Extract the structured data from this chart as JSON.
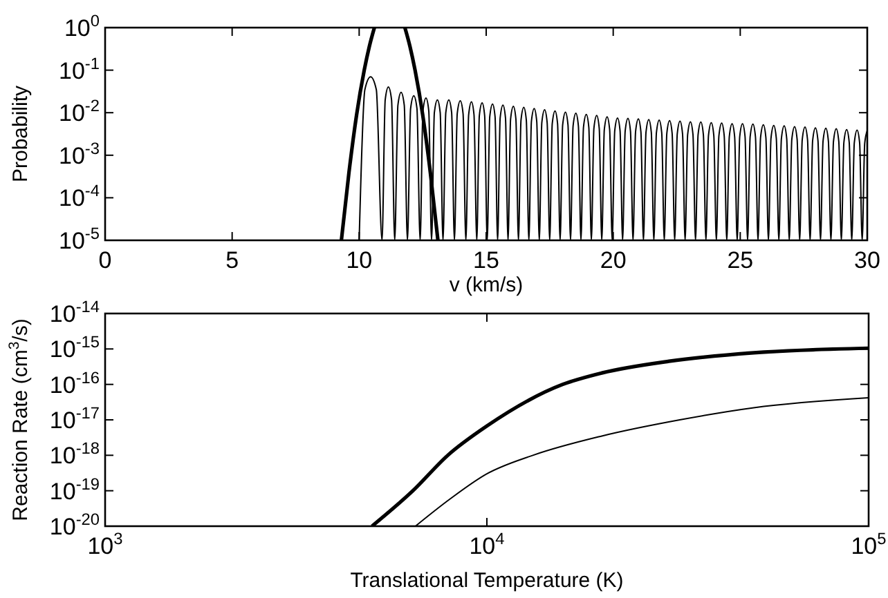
{
  "chart_data": [
    {
      "type": "line",
      "xlabel": "v (km/s)",
      "ylabel": "Probability",
      "log": "y",
      "grid": false,
      "xlim": [
        0,
        30
      ],
      "xticks": [
        0,
        5,
        10,
        15,
        20,
        25,
        30
      ],
      "ylim": [
        1e-05,
        1
      ],
      "yticks": [
        {
          "value": 1e-05,
          "label": "10$^{-5}$"
        },
        {
          "value": 0.0001,
          "label": "10$^{-4}$"
        },
        {
          "value": 0.001,
          "label": "10$^{-3}$"
        },
        {
          "value": 0.01,
          "label": "10$^{-2}$"
        },
        {
          "value": 0.1,
          "label": "10$^{-1}$"
        },
        {
          "value": 1,
          "label": "10$^{0}$"
        }
      ],
      "series": [
        {
          "color": "#000000",
          "x": [
            9.3,
            9.6,
            9.9,
            10.2,
            10.4,
            10.6,
            11.2,
            11.8,
            12.0,
            12.2,
            12.5,
            12.8,
            13.1
          ],
          "values": [
            1e-05,
            0.0004,
            0.009,
            0.1,
            0.36,
            1,
            null,
            1,
            0.36,
            0.1,
            0.009,
            0.0004,
            1e-05
          ]
        },
        {
          "color": "#000000",
          "x": [
            10.0,
            10.225,
            10.45,
            10.675,
            10.9,
            11.025,
            11.15,
            11.275,
            11.4,
            11.525,
            11.65,
            11.775,
            11.9,
            12.025,
            12.15,
            12.275,
            12.4,
            12.51,
            12.63,
            12.74,
            12.85,
            12.96,
            13.08,
            13.19,
            13.3,
            13.41,
            13.53,
            13.64,
            13.75,
            13.86,
            13.98,
            14.09,
            14.2,
            14.31,
            14.42,
            14.52,
            14.63,
            14.73,
            14.84,
            14.94,
            15.04,
            15.14,
            15.25,
            15.35,
            15.45,
            15.55,
            15.66,
            15.76,
            15.86,
            15.96,
            16.07,
            16.17,
            16.27,
            16.37,
            16.48,
            16.58,
            16.68,
            16.78,
            16.89,
            16.99,
            17.09,
            17.19,
            17.3,
            17.4,
            17.5,
            17.6,
            17.71,
            17.81,
            17.91,
            18.01,
            18.12,
            18.22,
            18.32,
            18.42,
            18.53,
            18.63,
            18.73,
            18.83,
            18.94,
            19.04,
            19.14,
            19.24,
            19.35,
            19.45,
            19.55,
            19.65,
            19.76,
            19.86,
            19.96,
            20.06,
            20.17,
            20.27,
            20.37,
            20.47,
            20.58,
            20.68,
            20.78,
            20.88,
            20.99,
            21.09,
            21.19,
            21.29,
            21.4,
            21.5,
            21.6,
            21.7,
            21.81,
            21.91,
            22.01,
            22.11,
            22.22,
            22.32,
            22.42,
            22.52,
            22.63,
            22.73,
            22.83,
            22.93,
            23.04,
            23.14,
            23.24,
            23.34,
            23.45,
            23.55,
            23.65,
            23.75,
            23.86,
            23.96,
            24.06,
            24.16,
            24.27,
            24.37,
            24.47,
            24.57,
            24.68,
            24.78,
            24.88,
            24.98,
            25.09,
            25.19,
            25.29,
            25.39,
            25.5,
            25.6,
            25.7,
            25.8,
            25.91,
            26.01,
            26.11,
            26.21,
            26.32,
            26.42,
            26.52,
            26.62,
            26.73,
            26.83,
            26.93,
            27.03,
            27.14,
            27.24,
            27.34,
            27.44,
            27.55,
            27.65,
            27.75,
            27.85,
            27.96,
            28.06,
            28.16,
            28.26,
            28.37,
            28.47,
            28.57,
            28.67,
            28.78,
            28.88,
            28.98,
            29.08,
            29.19,
            29.29,
            29.39,
            29.49,
            29.6,
            29.7,
            29.8,
            29.9,
            30
          ],
          "values": [
            1e-05,
            0.035,
            0.07,
            0.035,
            1e-05,
            0.02,
            0.04,
            0.02,
            1e-05,
            0.015,
            0.03,
            0.015,
            1e-05,
            0.0125,
            0.025,
            0.0125,
            1e-05,
            0.011,
            0.022,
            0.011,
            1e-05,
            0.01,
            0.02,
            0.01,
            1e-05,
            0.01,
            0.02,
            0.01,
            1e-05,
            0.0095,
            0.019,
            0.0095,
            1e-05,
            0.009,
            0.018,
            0.009,
            1e-05,
            0.0085,
            0.017,
            0.0085,
            1e-05,
            0.008,
            0.016,
            0.008,
            1e-05,
            0.0075,
            0.015,
            0.0075,
            1e-05,
            0.00705,
            0.0141,
            0.00705,
            1e-05,
            0.00665,
            0.0133,
            0.00665,
            1e-05,
            0.00625,
            0.0125,
            0.00625,
            1e-05,
            0.00585,
            0.0117,
            0.00585,
            1e-05,
            0.0055,
            0.011,
            0.0055,
            1e-05,
            0.00515,
            0.0103,
            0.00515,
            1e-05,
            0.00485,
            0.0097,
            0.00485,
            1e-05,
            0.00455,
            0.0091,
            0.00455,
            1e-05,
            0.0043,
            0.0086,
            0.0043,
            1e-05,
            0.004,
            0.008,
            0.004,
            1e-05,
            0.00375,
            0.0075,
            0.00375,
            1e-05,
            0.00365,
            0.0073,
            0.00365,
            1e-05,
            0.00355,
            0.0071,
            0.00355,
            1e-05,
            0.00345,
            0.0069,
            0.00345,
            1e-05,
            0.00335,
            0.0067,
            0.00335,
            1e-05,
            0.00325,
            0.0065,
            0.00325,
            1e-05,
            0.00315,
            0.0063,
            0.00315,
            1e-05,
            0.00305,
            0.0061,
            0.00305,
            1e-05,
            0.003,
            0.006,
            0.003,
            1e-05,
            0.0029,
            0.0058,
            0.0029,
            1e-05,
            0.00285,
            0.0057,
            0.00285,
            1e-05,
            0.00275,
            0.0055,
            0.00275,
            1e-05,
            0.00275,
            0.0055,
            0.00275,
            1e-05,
            0.0027,
            0.0054,
            0.0027,
            1e-05,
            0.0026,
            0.0052,
            0.0026,
            1e-05,
            0.0025,
            0.005,
            0.0025,
            1e-05,
            0.00245,
            0.0049,
            0.00245,
            1e-05,
            0.00235,
            0.0047,
            0.00235,
            1e-05,
            0.0023,
            0.0046,
            0.0023,
            1e-05,
            0.0022,
            0.0044,
            0.0022,
            1e-05,
            0.00215,
            0.0043,
            0.00215,
            1e-05,
            0.0021,
            0.0042,
            0.0021,
            1e-05,
            0.002,
            0.004,
            0.002,
            1e-05,
            0.00195,
            0.0039,
            0.00195,
            1e-05,
            0.0019,
            0.0038
          ]
        }
      ]
    },
    {
      "type": "line",
      "xlabel": "Translational Temperature (K)",
      "ylabel": "Reaction Rate (cm$^{3}$/s)",
      "log": "xy",
      "grid": false,
      "xlim": [
        1000,
        100000
      ],
      "xticks": [
        {
          "value": 1000,
          "label": "10$^{3}$"
        },
        {
          "value": 10000,
          "label": "10$^{4}$"
        },
        {
          "value": 100000,
          "label": "10$^{5}$"
        }
      ],
      "ylim": [
        1e-20,
        1e-14
      ],
      "yticks": [
        {
          "value": 1e-20,
          "label": "10$^{-20}$"
        },
        {
          "value": 1e-19,
          "label": "10$^{-19}$"
        },
        {
          "value": 1e-18,
          "label": "10$^{-18}$"
        },
        {
          "value": 1e-17,
          "label": "10$^{-17}$"
        },
        {
          "value": 1e-16,
          "label": "10$^{-16}$"
        },
        {
          "value": 1e-15,
          "label": "10$^{-15}$"
        },
        {
          "value": 1e-14,
          "label": "10$^{-14}$"
        }
      ],
      "series": [
        {
          "color": "#000000",
          "x": [
            5000,
            6400,
            7900,
            10000,
            15800,
            20000,
            30000,
            50000,
            100000
          ],
          "values": [
            1e-20,
            1e-19,
            1e-18,
            6.7e-18,
            1e-16,
            2.1e-16,
            4.5e-16,
            7.8e-16,
            1.05e-15
          ]
        },
        {
          "color": "#000000",
          "x": [
            6500,
            8000,
            10000,
            13200,
            20000,
            32000,
            50000,
            100000
          ],
          "values": [
            1e-20,
            5.8e-20,
            3e-19,
            1e-18,
            3.5e-18,
            1e-17,
            2.2e-17,
            4.2e-17
          ]
        }
      ]
    }
  ]
}
